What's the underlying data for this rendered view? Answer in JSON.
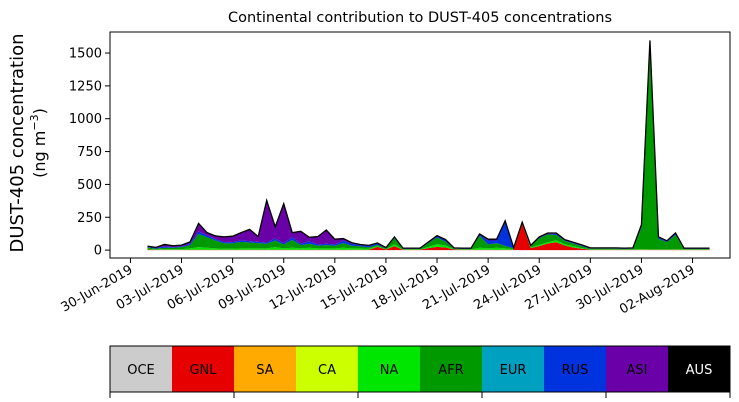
{
  "chart_data": {
    "type": "area",
    "title": "Continental contribution to DUST-405 concentrations",
    "ylabel_main": "DUST-405 concentration",
    "ylabel_unit": "(ng m",
    "ylabel_exp": "−3",
    "ylabel_close": ")",
    "xlabel": "",
    "xlim_days": [
      -1.2,
      35.2
    ],
    "ylim": [
      -60,
      1660
    ],
    "y_ticks": [
      0,
      250,
      500,
      750,
      1000,
      1250,
      1500
    ],
    "y_tick_labels": [
      "0",
      "250",
      "500",
      "750",
      "1000",
      "1250",
      "1500"
    ],
    "x_ticks": [
      {
        "day": 0,
        "label": "30-Jun-2019"
      },
      {
        "day": 3,
        "label": "03-Jul-2019"
      },
      {
        "day": 6,
        "label": "06-Jul-2019"
      },
      {
        "day": 9,
        "label": "09-Jul-2019"
      },
      {
        "day": 12,
        "label": "12-Jul-2019"
      },
      {
        "day": 15,
        "label": "15-Jul-2019"
      },
      {
        "day": 18,
        "label": "18-Jul-2019"
      },
      {
        "day": 21,
        "label": "21-Jul-2019"
      },
      {
        "day": 24,
        "label": "24-Jul-2019"
      },
      {
        "day": 27,
        "label": "27-Jul-2019"
      },
      {
        "day": 30,
        "label": "30-Jul-2019"
      },
      {
        "day": 33,
        "label": "02-Aug-2019"
      }
    ],
    "x": [
      1,
      1.5,
      2,
      2.5,
      3,
      3.5,
      4,
      4.5,
      5,
      5.5,
      6,
      6.5,
      7,
      7.5,
      8,
      8.5,
      9,
      9.5,
      10,
      10.5,
      11,
      11.5,
      12,
      12.5,
      13,
      13.5,
      14,
      14.5,
      15,
      15.5,
      16,
      16.5,
      17,
      17.5,
      18,
      18.5,
      19,
      19.5,
      20,
      20.5,
      21,
      21.5,
      22,
      22.5,
      23,
      23.5,
      24,
      24.5,
      25,
      25.5,
      26,
      26.5,
      27,
      27.5,
      28,
      28.5,
      29,
      29.5,
      30,
      30.5,
      31,
      31.5,
      32,
      32.5,
      33,
      33.5,
      34
    ],
    "series": [
      {
        "name": "GNL",
        "color": "#e60000",
        "values": [
          5,
          3,
          3,
          3,
          3,
          3,
          3,
          3,
          3,
          3,
          3,
          3,
          3,
          3,
          3,
          3,
          3,
          3,
          3,
          3,
          3,
          3,
          3,
          3,
          3,
          3,
          3,
          25,
          5,
          30,
          3,
          3,
          3,
          15,
          25,
          20,
          5,
          3,
          3,
          3,
          3,
          3,
          3,
          3,
          200,
          15,
          30,
          50,
          60,
          35,
          20,
          10,
          3,
          3,
          3,
          3,
          3,
          3,
          3,
          3,
          3,
          3,
          3,
          3,
          3,
          3,
          3
        ]
      },
      {
        "name": "SA",
        "color": "#ffaa00",
        "values": [
          0,
          0,
          0,
          0,
          0,
          0,
          0,
          0,
          0,
          0,
          0,
          0,
          0,
          0,
          0,
          0,
          0,
          0,
          0,
          0,
          0,
          0,
          0,
          0,
          0,
          0,
          0,
          0,
          0,
          0,
          0,
          0,
          0,
          0,
          0,
          0,
          0,
          0,
          0,
          0,
          0,
          0,
          0,
          0,
          0,
          0,
          0,
          0,
          0,
          0,
          0,
          0,
          0,
          0,
          0,
          0,
          0,
          0,
          0,
          0,
          0,
          0,
          0,
          0,
          0,
          0,
          0
        ]
      },
      {
        "name": "CA",
        "color": "#ccff00",
        "values": [
          0,
          0,
          0,
          0,
          0,
          0,
          0,
          0,
          0,
          0,
          0,
          0,
          0,
          0,
          0,
          0,
          0,
          0,
          0,
          0,
          0,
          0,
          0,
          0,
          0,
          0,
          0,
          0,
          0,
          0,
          0,
          0,
          0,
          0,
          0,
          0,
          0,
          0,
          0,
          0,
          0,
          0,
          0,
          0,
          0,
          0,
          0,
          0,
          0,
          0,
          0,
          0,
          0,
          0,
          0,
          0,
          0,
          0,
          0,
          0,
          0,
          0,
          0,
          0,
          0,
          0,
          0
        ]
      },
      {
        "name": "NA",
        "color": "#00e600",
        "values": [
          5,
          3,
          5,
          5,
          5,
          10,
          20,
          15,
          10,
          8,
          8,
          10,
          10,
          10,
          10,
          20,
          10,
          15,
          10,
          15,
          10,
          10,
          10,
          15,
          10,
          10,
          8,
          5,
          3,
          15,
          3,
          3,
          3,
          10,
          20,
          15,
          3,
          3,
          3,
          15,
          10,
          15,
          10,
          5,
          3,
          5,
          10,
          10,
          15,
          10,
          10,
          5,
          3,
          3,
          3,
          3,
          3,
          3,
          5,
          3,
          3,
          3,
          3,
          3,
          3,
          3,
          3
        ]
      },
      {
        "name": "AFR",
        "color": "#009900",
        "values": [
          10,
          5,
          10,
          10,
          15,
          25,
          100,
          80,
          60,
          40,
          40,
          50,
          45,
          40,
          35,
          50,
          30,
          60,
          25,
          30,
          20,
          25,
          20,
          35,
          20,
          15,
          10,
          10,
          5,
          45,
          3,
          3,
          3,
          30,
          50,
          30,
          3,
          3,
          3,
          90,
          30,
          35,
          20,
          5,
          3,
          10,
          50,
          60,
          40,
          25,
          20,
          15,
          5,
          5,
          5,
          5,
          3,
          5,
          160,
          1520,
          80,
          55,
          110,
          3,
          3,
          3,
          3
        ]
      },
      {
        "name": "EUR",
        "color": "#00a0c0",
        "values": [
          0,
          0,
          0,
          0,
          0,
          0,
          0,
          0,
          0,
          0,
          0,
          0,
          0,
          0,
          0,
          0,
          0,
          0,
          0,
          0,
          0,
          0,
          0,
          0,
          0,
          0,
          0,
          0,
          0,
          0,
          0,
          0,
          0,
          0,
          0,
          0,
          0,
          0,
          0,
          0,
          0,
          0,
          0,
          0,
          0,
          0,
          0,
          0,
          0,
          0,
          0,
          0,
          0,
          0,
          0,
          0,
          0,
          0,
          0,
          0,
          0,
          0,
          0,
          0,
          0,
          0,
          0
        ]
      },
      {
        "name": "RUS",
        "color": "#0033dd",
        "values": [
          5,
          5,
          10,
          5,
          5,
          10,
          20,
          15,
          10,
          10,
          10,
          10,
          10,
          10,
          10,
          15,
          10,
          20,
          10,
          20,
          10,
          10,
          10,
          20,
          15,
          10,
          10,
          10,
          3,
          5,
          3,
          3,
          3,
          5,
          10,
          10,
          3,
          3,
          3,
          10,
          30,
          20,
          180,
          3,
          3,
          3,
          5,
          5,
          10,
          5,
          5,
          5,
          3,
          3,
          3,
          3,
          3,
          3,
          20,
          30,
          10,
          5,
          10,
          3,
          3,
          3,
          3
        ]
      },
      {
        "name": "ASI",
        "color": "#6a00a8",
        "values": [
          5,
          5,
          15,
          10,
          10,
          15,
          60,
          20,
          25,
          40,
          45,
          60,
          90,
          40,
          320,
          90,
          300,
          35,
          95,
          30,
          60,
          105,
          40,
          15,
          8,
          5,
          5,
          5,
          3,
          5,
          3,
          3,
          3,
          3,
          5,
          5,
          3,
          3,
          3,
          5,
          10,
          10,
          10,
          3,
          3,
          3,
          5,
          5,
          5,
          5,
          5,
          5,
          3,
          3,
          3,
          3,
          3,
          3,
          5,
          40,
          5,
          5,
          5,
          3,
          3,
          3,
          3
        ]
      },
      {
        "name": "AUS",
        "color": "#000000",
        "values": [
          0,
          0,
          0,
          0,
          0,
          0,
          0,
          0,
          0,
          0,
          0,
          0,
          0,
          0,
          0,
          0,
          0,
          0,
          0,
          0,
          0,
          0,
          0,
          0,
          0,
          0,
          0,
          0,
          0,
          0,
          0,
          0,
          0,
          0,
          0,
          0,
          0,
          0,
          0,
          0,
          0,
          0,
          0,
          0,
          0,
          0,
          0,
          0,
          0,
          0,
          0,
          0,
          0,
          0,
          0,
          0,
          0,
          0,
          0,
          0,
          0,
          0,
          0,
          0,
          0,
          0,
          0
        ]
      }
    ],
    "legend_placement": "bottom",
    "grid": false
  },
  "legend": {
    "items": [
      {
        "label": "OCE",
        "color": "#cccccc",
        "text_color": "#000000"
      },
      {
        "label": "GNL",
        "color": "#e60000",
        "text_color": "#000000"
      },
      {
        "label": "SA",
        "color": "#ffaa00",
        "text_color": "#000000"
      },
      {
        "label": "CA",
        "color": "#ccff00",
        "text_color": "#000000"
      },
      {
        "label": "NA",
        "color": "#00e600",
        "text_color": "#000000"
      },
      {
        "label": "AFR",
        "color": "#009900",
        "text_color": "#000000"
      },
      {
        "label": "EUR",
        "color": "#00a0c0",
        "text_color": "#000000"
      },
      {
        "label": "RUS",
        "color": "#0033dd",
        "text_color": "#000000"
      },
      {
        "label": "ASI",
        "color": "#6a00a8",
        "text_color": "#000000"
      },
      {
        "label": "AUS",
        "color": "#000000",
        "text_color": "#ffffff"
      }
    ]
  }
}
